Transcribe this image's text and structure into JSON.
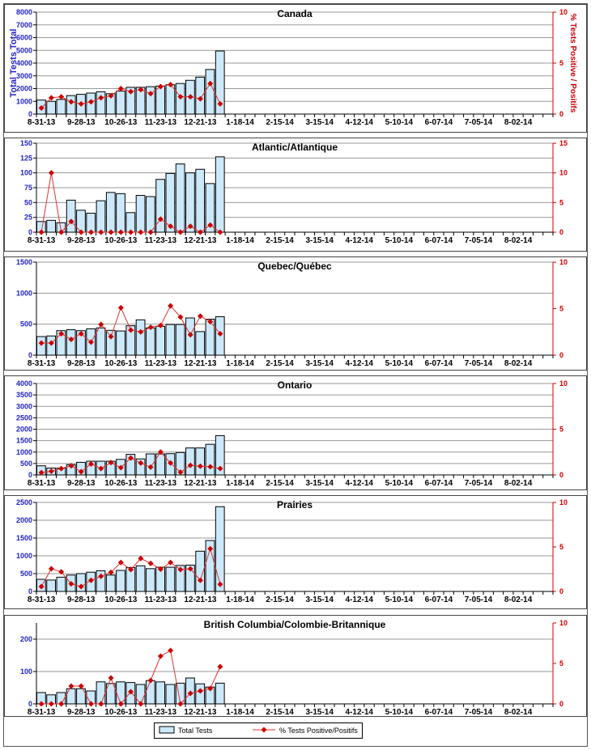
{
  "chart_data": {
    "type": "bar+line",
    "x_tick_labels": [
      "8-31-13",
      "9-28-13",
      "10-26-13",
      "11-23-13",
      "12-21-13",
      "1-18-14",
      "2-15-14",
      "3-15-14",
      "4-12-14",
      "5-10-14",
      "6-07-14",
      "7-05-14",
      "8-02-14"
    ],
    "weeks_total": 52,
    "left_axis_label": "Total Tests Total",
    "right_axis_label": "% Tests Positive / Positifs",
    "legend": {
      "bar": "Total Tests",
      "line": "% Tests Positive/Positifs",
      "placement": "bottom-center"
    },
    "colors": {
      "bar_fill": "#cce9fb",
      "bar_stroke": "#000000",
      "line": "#e03030",
      "marker": "#cc0000",
      "left_axis": "#2222cc",
      "right_axis": "#cc0000",
      "grid": "#999999"
    },
    "panels": [
      {
        "title": "Canada",
        "ylim": [
          0,
          8000
        ],
        "yticks": [
          0,
          1000,
          2000,
          3000,
          4000,
          5000,
          6000,
          7000,
          8000
        ],
        "y2lim": [
          0,
          10
        ],
        "y2ticks": [
          0,
          5,
          10
        ],
        "total_tests": [
          1100,
          1000,
          1150,
          1450,
          1550,
          1650,
          1750,
          1600,
          1800,
          2100,
          2100,
          2150,
          2200,
          2300,
          2400,
          2650,
          2900,
          3500,
          4950
        ],
        "pct_positive": [
          0.6,
          1.6,
          1.7,
          1.2,
          1.0,
          1.2,
          1.6,
          1.8,
          2.5,
          2.2,
          2.4,
          2.0,
          2.7,
          2.9,
          1.7,
          1.7,
          1.5,
          3.0,
          1.0
        ]
      },
      {
        "title": "Atlantic/Atlantique",
        "ylim": [
          0,
          150
        ],
        "yticks": [
          0,
          25,
          50,
          75,
          100,
          125,
          150
        ],
        "y2lim": [
          0,
          15
        ],
        "y2ticks": [
          0,
          5,
          10,
          15
        ],
        "total_tests": [
          18,
          20,
          16,
          54,
          37,
          32,
          53,
          67,
          65,
          33,
          62,
          60,
          89,
          99,
          115,
          100,
          106,
          82,
          127
        ],
        "pct_positive": [
          0,
          10,
          0,
          1.8,
          0,
          0,
          0,
          0,
          0,
          0,
          0,
          0,
          2.2,
          1.0,
          0,
          1.0,
          0,
          1.2,
          0
        ]
      },
      {
        "title": "Quebec/Québec",
        "ylim": [
          0,
          1500
        ],
        "yticks": [
          0,
          500,
          1000,
          1500
        ],
        "y2lim": [
          0,
          10
        ],
        "y2ticks": [
          0,
          5,
          10
        ],
        "total_tests": [
          300,
          310,
          395,
          410,
          395,
          425,
          440,
          400,
          390,
          475,
          570,
          440,
          465,
          495,
          495,
          600,
          380,
          580,
          620
        ],
        "pct_positive": [
          1.3,
          1.3,
          2.3,
          1.7,
          2.3,
          1.4,
          3.3,
          2.0,
          5.1,
          2.7,
          2.5,
          3.0,
          3.2,
          5.3,
          4.1,
          2.2,
          4.2,
          3.6,
          2.3
        ]
      },
      {
        "title": "Ontario",
        "ylim": [
          0,
          4000
        ],
        "yticks": [
          0,
          500,
          1000,
          1500,
          2000,
          2500,
          3000,
          3500,
          4000
        ],
        "y2lim": [
          0,
          10
        ],
        "y2ticks": [
          0,
          5,
          10
        ],
        "total_tests": [
          400,
          300,
          300,
          450,
          550,
          600,
          600,
          600,
          680,
          900,
          700,
          920,
          920,
          930,
          980,
          1180,
          1180,
          1340,
          1720
        ],
        "pct_positive": [
          0.25,
          0.4,
          0.7,
          1.0,
          0.35,
          1.2,
          0.7,
          1.35,
          0.8,
          1.85,
          1.3,
          0.85,
          2.5,
          1.3,
          0.3,
          1.05,
          0.95,
          0.9,
          0.7
        ]
      },
      {
        "title": "Prairies",
        "ylim": [
          0,
          2500
        ],
        "yticks": [
          0,
          500,
          1000,
          1500,
          2000,
          2500
        ],
        "y2lim": [
          0,
          10
        ],
        "y2ticks": [
          0,
          5,
          10
        ],
        "total_tests": [
          340,
          320,
          400,
          460,
          500,
          540,
          580,
          460,
          590,
          670,
          720,
          640,
          680,
          680,
          730,
          740,
          1130,
          1430,
          2380
        ],
        "pct_positive": [
          0.55,
          2.55,
          2.2,
          0.85,
          0.55,
          1.25,
          1.7,
          2.15,
          3.25,
          2.45,
          3.7,
          3.15,
          2.5,
          3.25,
          2.45,
          2.55,
          1.25,
          4.8,
          0.8
        ]
      },
      {
        "title": "British Columbia/Colombie-Britannique",
        "ylim": [
          0,
          250
        ],
        "yticks": [
          0,
          100,
          200
        ],
        "y2lim": [
          0,
          10
        ],
        "y2ticks": [
          0,
          5,
          10
        ],
        "total_tests": [
          35,
          28,
          35,
          47,
          47,
          40,
          68,
          63,
          68,
          66,
          60,
          72,
          68,
          60,
          64,
          80,
          62,
          52,
          64
        ],
        "pct_positive": [
          0,
          0,
          0,
          2.2,
          2.2,
          0,
          0,
          3.2,
          0,
          1.5,
          0,
          2.9,
          5.9,
          6.6,
          0,
          1.3,
          1.6,
          1.9,
          4.6
        ]
      }
    ]
  }
}
